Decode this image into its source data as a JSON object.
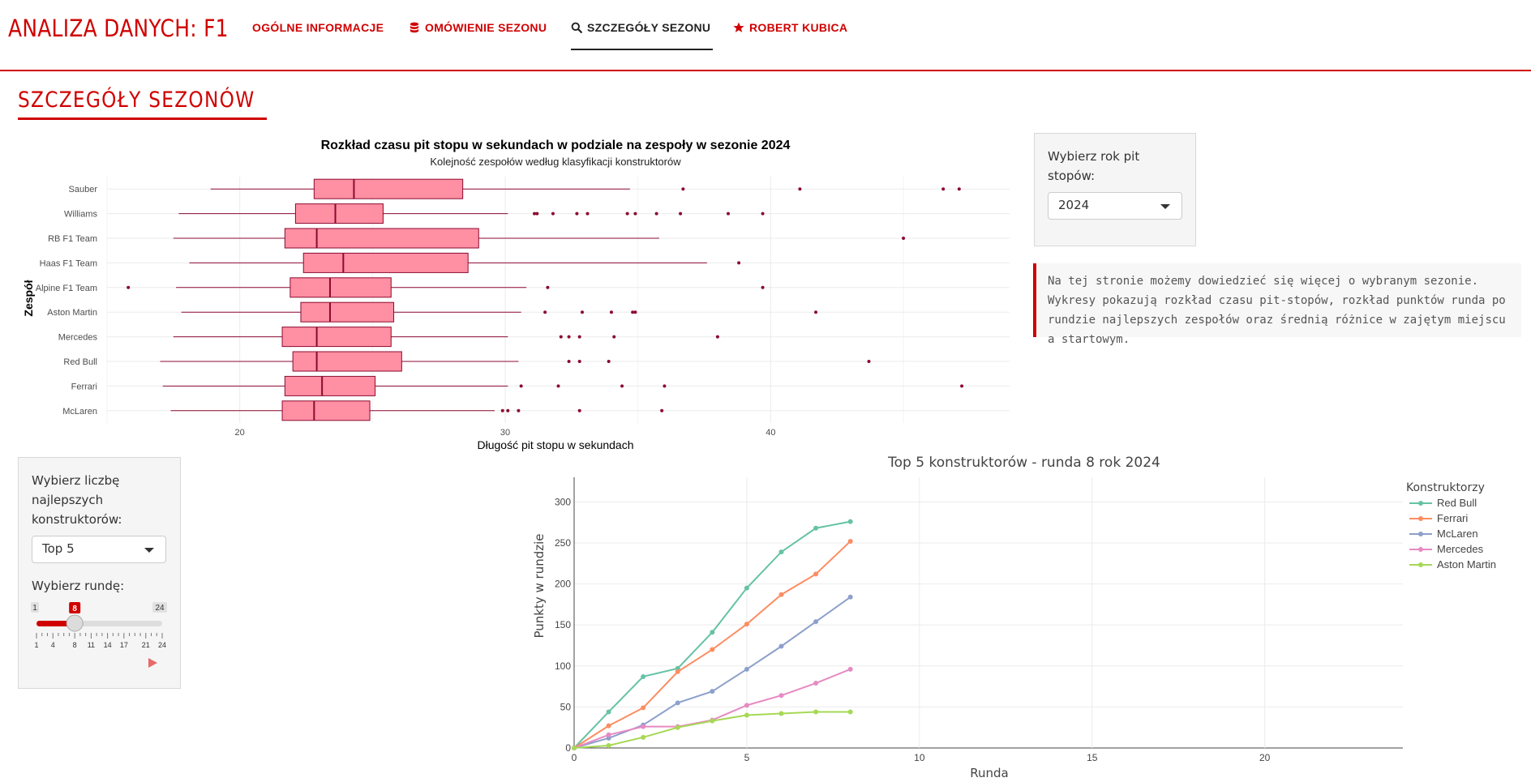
{
  "brand": "ANALIZA DANYCH: F1",
  "nav": [
    {
      "label": "OGÓLNE INFORMACJE",
      "icon": ""
    },
    {
      "label": "OMÓWIENIE SEZONU",
      "icon": "database-icon"
    },
    {
      "label": "SZCZEGÓŁY SEZONU",
      "icon": "search-icon"
    },
    {
      "label": "ROBERT KUBICA",
      "icon": "star-icon"
    }
  ],
  "page_title": "SZCZEGÓŁY SEZONÓW",
  "year_panel": {
    "label": "Wybierz rok pit stopów:",
    "selected": "2024"
  },
  "info_text": "Na tej stronie możemy dowiedzieć się więcej o wybranym sezonie. Wykresy pokazują rozkład czasu pit-stopów, rozkład punktów runda po rundzie najlepszych zespołów oraz średnią różnice w zajętym miejscu a startowym.",
  "constructors_panel": {
    "label": "Wybierz liczbę najlepszych konstruktorów:",
    "selected": "Top 5",
    "round_label": "Wybierz rundę:",
    "slider_min": "1",
    "slider_max": "24",
    "slider_value": "8",
    "slider_value_num": 8,
    "slider_ticks": [
      "1",
      "4",
      "8",
      "11",
      "14",
      "17",
      "21",
      "24"
    ]
  },
  "colors": {
    "accent": "#d00000",
    "box_fill": "#ff8fa3",
    "box_line": "#8b0a30"
  },
  "charts": {
    "boxplot": {
      "type": "box",
      "title": "Rozkład czasu pit stopu w sekundach w podziale na zespoły w sezonie 2024",
      "subtitle": "Kolejność zespołów według klasyfikacji konstruktorów",
      "xlabel": "Długość pit stopu w sekundach",
      "ylabel": "Zespół",
      "xlim": [
        15,
        49
      ],
      "xticks": [
        20,
        30,
        40
      ],
      "grid": true,
      "teams": [
        {
          "name": "Sauber",
          "whisker_low": 18.9,
          "q1": 22.8,
          "median": 24.3,
          "q3": 28.4,
          "whisker_high": 34.7,
          "outliers": [
            36.7,
            41.1,
            46.5,
            47.1
          ]
        },
        {
          "name": "Williams",
          "whisker_low": 17.7,
          "q1": 22.1,
          "median": 23.6,
          "q3": 25.4,
          "whisker_high": 30.1,
          "outliers": [
            31.1,
            31.2,
            31.8,
            32.7,
            33.1,
            34.6,
            34.9,
            35.7,
            36.6,
            38.4,
            39.7
          ]
        },
        {
          "name": "RB F1 Team",
          "whisker_low": 17.5,
          "q1": 21.7,
          "median": 22.9,
          "q3": 29.0,
          "whisker_high": 35.8,
          "outliers": [
            45.0
          ]
        },
        {
          "name": "Haas F1 Team",
          "whisker_low": 18.1,
          "q1": 22.4,
          "median": 23.9,
          "q3": 28.6,
          "whisker_high": 37.6,
          "outliers": [
            38.8
          ]
        },
        {
          "name": "Alpine F1 Team",
          "whisker_low": 17.6,
          "q1": 21.9,
          "median": 23.4,
          "q3": 25.7,
          "whisker_high": 30.8,
          "outliers": [
            15.8,
            31.6,
            39.7
          ]
        },
        {
          "name": "Aston Martin",
          "whisker_low": 17.8,
          "q1": 22.3,
          "median": 23.4,
          "q3": 25.8,
          "whisker_high": 30.6,
          "outliers": [
            31.5,
            32.9,
            34.0,
            34.8,
            34.9,
            41.7
          ]
        },
        {
          "name": "Mercedes",
          "whisker_low": 17.5,
          "q1": 21.6,
          "median": 22.9,
          "q3": 25.7,
          "whisker_high": 30.1,
          "outliers": [
            32.1,
            32.4,
            32.8,
            34.1,
            38.0
          ]
        },
        {
          "name": "Red Bull",
          "whisker_low": 17.0,
          "q1": 22.0,
          "median": 22.9,
          "q3": 26.1,
          "whisker_high": 30.5,
          "outliers": [
            32.4,
            32.8,
            33.9,
            43.7
          ]
        },
        {
          "name": "Ferrari",
          "whisker_low": 17.1,
          "q1": 21.7,
          "median": 23.1,
          "q3": 25.1,
          "whisker_high": 30.1,
          "outliers": [
            30.6,
            32.0,
            34.4,
            36.0,
            47.2
          ]
        },
        {
          "name": "McLaren",
          "whisker_low": 17.4,
          "q1": 21.6,
          "median": 22.8,
          "q3": 24.9,
          "whisker_high": 29.6,
          "outliers": [
            29.9,
            30.1,
            30.5,
            32.8,
            35.9
          ]
        }
      ]
    },
    "lines": {
      "type": "line",
      "title": "Top 5 konstruktorów - runda 8 rok 2024",
      "xlabel": "Runda",
      "ylabel": "Punkty w rundzie",
      "xlim": [
        0,
        24
      ],
      "ylim": [
        0,
        330
      ],
      "xticks": [
        0,
        5,
        10,
        15,
        20
      ],
      "yticks": [
        0,
        50,
        100,
        150,
        200,
        250,
        300
      ],
      "legend_title": "Konstruktorzy",
      "legend_position": "top-right",
      "series": [
        {
          "name": "Red Bull",
          "color": "#66c2a5",
          "x": [
            0,
            1,
            2,
            3,
            4,
            5,
            6,
            7,
            8
          ],
          "values": [
            0,
            44,
            87,
            97,
            141,
            195,
            239,
            268,
            276
          ]
        },
        {
          "name": "Ferrari",
          "color": "#fc8d62",
          "x": [
            0,
            1,
            2,
            3,
            4,
            5,
            6,
            7,
            8
          ],
          "values": [
            0,
            27,
            49,
            93,
            120,
            151,
            187,
            212,
            252
          ]
        },
        {
          "name": "McLaren",
          "color": "#8da0cb",
          "x": [
            0,
            1,
            2,
            3,
            4,
            5,
            6,
            7,
            8
          ],
          "values": [
            0,
            12,
            28,
            55,
            69,
            96,
            124,
            154,
            184
          ]
        },
        {
          "name": "Mercedes",
          "color": "#e78ac3",
          "x": [
            0,
            1,
            2,
            3,
            4,
            5,
            6,
            7,
            8
          ],
          "values": [
            0,
            16,
            26,
            26,
            34,
            52,
            64,
            79,
            96
          ]
        },
        {
          "name": "Aston Martin",
          "color": "#a6d854",
          "x": [
            0,
            1,
            2,
            3,
            4,
            5,
            6,
            7,
            8
          ],
          "values": [
            0,
            3,
            13,
            25,
            33,
            40,
            42,
            44,
            44
          ]
        }
      ]
    }
  }
}
